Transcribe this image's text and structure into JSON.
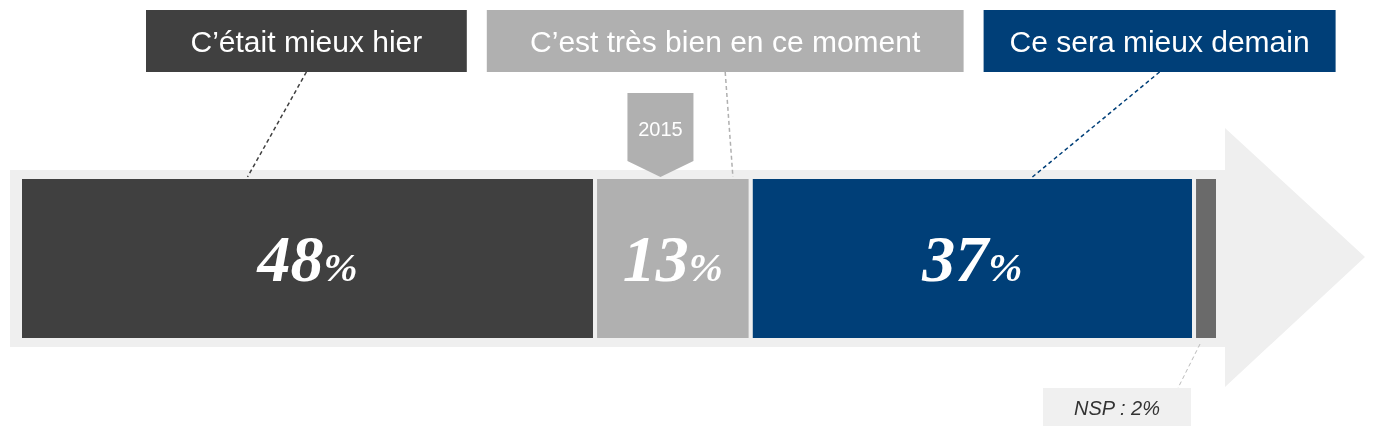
{
  "chart_data": {
    "type": "bar",
    "orientation": "horizontal",
    "stacked": true,
    "categories": [
      null
    ],
    "xlim": [
      0,
      100
    ],
    "tick_labels": false,
    "legend": "top",
    "annotations": [
      "2015"
    ],
    "series": [
      {
        "name": "C’était mieux hier",
        "color": "#404040",
        "values": [
          48
        ],
        "value_labels": [
          "48%"
        ]
      },
      {
        "name": "C’est très bien en ce moment",
        "color": "#b0b0b0",
        "values": [
          13
        ],
        "value_labels": [
          "13%"
        ]
      },
      {
        "name": "Ce sera mieux demain",
        "color": "#003f78",
        "values": [
          37
        ],
        "value_labels": [
          "37%"
        ]
      },
      {
        "color": "#6a6a6a",
        "values": [
          2
        ],
        "value_labels": [
          "NSP : 2%"
        ]
      }
    ]
  }
}
